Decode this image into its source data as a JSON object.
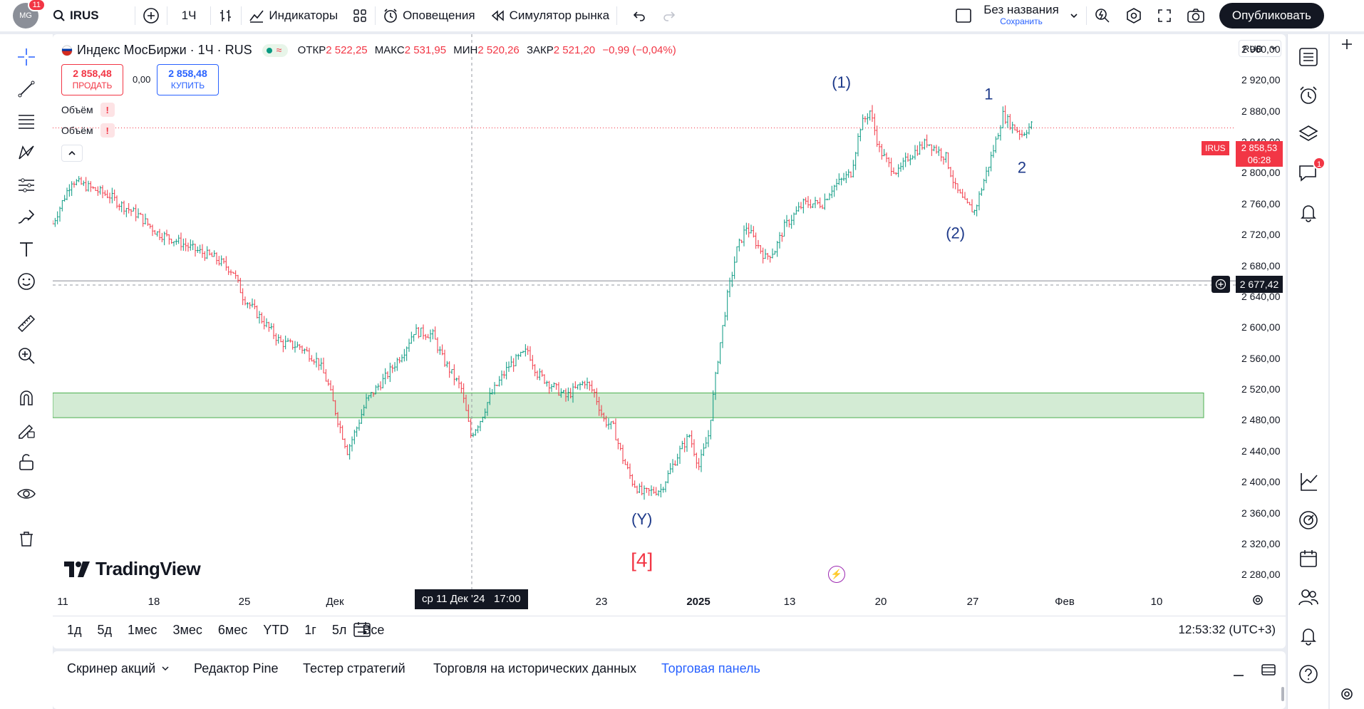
{
  "topbar": {
    "avatar_text": "MG",
    "avatar_badge": "11",
    "symbol": "IRUS",
    "interval": "1Ч",
    "indicators": "Индикаторы",
    "alerts": "Оповещения",
    "simulator": "Симулятор рынка",
    "layout_name": "Без названия",
    "layout_sub": "Сохранить",
    "publish": "Опубликовать"
  },
  "legend": {
    "title": "Индекс МосБиржи · 1Ч · RUS",
    "o_label": "ОТКР",
    "o": "2 522,25",
    "h_label": "МАКС",
    "h": "2 531,95",
    "l_label": "МИН",
    "l": "2 520,26",
    "c_label": "ЗАКР",
    "c": "2 521,20",
    "chg": "−0,99 (−0,04%)",
    "sell_price": "2 858,48",
    "sell_label": "ПРОДАТЬ",
    "spread": "0,00",
    "buy_price": "2 858,48",
    "buy_label": "КУПИТЬ",
    "vol1": "Объём",
    "vol2": "Объём"
  },
  "currency": "RUB",
  "price_badge": {
    "symbol": "IRUS",
    "price": "2 858,53",
    "countdown": "06:28"
  },
  "crosshair_price": "2 677,42",
  "crosshair_time": "ср 11 Дек '24   17:00",
  "colors": {
    "up": "#089981",
    "down": "#f23645",
    "zone": "#c8e6c9",
    "wave_label": "#1e3a8a"
  },
  "branding": "TradingView",
  "chart_data": {
    "type": "candlestick",
    "title": "Индекс МосБиржи · 1Ч · RUS",
    "yticks": [
      "2 960,00",
      "2 920,00",
      "2 880,00",
      "2 840,00",
      "2 800,00",
      "2 760,00",
      "2 720,00",
      "2 680,00",
      "2 640,00",
      "2 600,00",
      "2 560,00",
      "2 520,00",
      "2 480,00",
      "2 440,00",
      "2 400,00",
      "2 360,00",
      "2 320,00",
      "2 280,00"
    ],
    "ylim": [
      2260,
      2970
    ],
    "xticks": [
      "11",
      "18",
      "25",
      "Дек",
      "23",
      "2025",
      "13",
      "20",
      "27",
      "Фев",
      "10"
    ],
    "series_path": [
      [
        0,
        2734
      ],
      [
        4,
        2790
      ],
      [
        8,
        2780
      ],
      [
        12,
        2770
      ],
      [
        14,
        2760
      ],
      [
        18,
        2745
      ],
      [
        22,
        2722
      ],
      [
        26,
        2712
      ],
      [
        30,
        2700
      ],
      [
        34,
        2690
      ],
      [
        38,
        2672
      ],
      [
        40,
        2640
      ],
      [
        44,
        2610
      ],
      [
        48,
        2580
      ],
      [
        52,
        2575
      ],
      [
        56,
        2555
      ],
      [
        58,
        2525
      ],
      [
        60,
        2480
      ],
      [
        62,
        2440
      ],
      [
        64,
        2470
      ],
      [
        66,
        2505
      ],
      [
        70,
        2535
      ],
      [
        74,
        2570
      ],
      [
        76,
        2595
      ],
      [
        80,
        2590
      ],
      [
        82,
        2560
      ],
      [
        84,
        2540
      ],
      [
        86,
        2520
      ],
      [
        88,
        2460
      ],
      [
        90,
        2480
      ],
      [
        92,
        2510
      ],
      [
        96,
        2550
      ],
      [
        100,
        2570
      ],
      [
        102,
        2540
      ],
      [
        106,
        2520
      ],
      [
        108,
        2510
      ],
      [
        112,
        2530
      ],
      [
        114,
        2515
      ],
      [
        116,
        2480
      ],
      [
        118,
        2470
      ],
      [
        120,
        2430
      ],
      [
        122,
        2400
      ],
      [
        124,
        2385
      ],
      [
        128,
        2390
      ],
      [
        132,
        2440
      ],
      [
        134,
        2460
      ],
      [
        136,
        2420
      ],
      [
        138,
        2460
      ],
      [
        140,
        2560
      ],
      [
        142,
        2640
      ],
      [
        144,
        2700
      ],
      [
        146,
        2730
      ],
      [
        148,
        2710
      ],
      [
        150,
        2690
      ],
      [
        152,
        2700
      ],
      [
        154,
        2730
      ],
      [
        158,
        2760
      ],
      [
        162,
        2760
      ],
      [
        164,
        2780
      ],
      [
        168,
        2800
      ],
      [
        170,
        2860
      ],
      [
        172,
        2880
      ],
      [
        174,
        2830
      ],
      [
        176,
        2810
      ],
      [
        178,
        2800
      ],
      [
        180,
        2820
      ],
      [
        184,
        2840
      ],
      [
        188,
        2820
      ],
      [
        190,
        2780
      ],
      [
        192,
        2760
      ],
      [
        194,
        2750
      ],
      [
        196,
        2790
      ],
      [
        198,
        2830
      ],
      [
        200,
        2875
      ],
      [
        202,
        2860
      ],
      [
        204,
        2850
      ],
      [
        206,
        2862
      ]
    ],
    "series_x_max": 206,
    "x_range": [
      0,
      270
    ],
    "zone": [
      2483,
      2515
    ],
    "hline": 2660,
    "wave_labels": [
      {
        "text": "(1)",
        "x": 166,
        "y": 2910,
        "color": "#1e3a8a"
      },
      {
        "text": "1",
        "x": 197,
        "y": 2895,
        "color": "#1e3a8a"
      },
      {
        "text": "2",
        "x": 204,
        "y": 2800,
        "color": "#1e3a8a"
      },
      {
        "text": "(2)",
        "x": 190,
        "y": 2715,
        "color": "#1e3a8a"
      },
      {
        "text": "(Y)",
        "x": 124,
        "y": 2345,
        "color": "#1e3a8a"
      },
      {
        "text": "[4]",
        "x": 124,
        "y": 2290,
        "color": "#f23645"
      }
    ]
  },
  "periods": [
    "1д",
    "5д",
    "1мес",
    "3мес",
    "6мес",
    "YTD",
    "1г",
    "5л",
    "Все"
  ],
  "clock": "12:53:32 (UTC+3)",
  "bottom_tabs": [
    "Скринер акций",
    "Редактор Pine",
    "Тестер стратегий",
    "Торговля на исторических данных",
    "Торговая панель"
  ],
  "icons": [
    "search-icon",
    "plus-circle-icon",
    "bar-style-icon",
    "indicators-icon",
    "templates-icon",
    "alert-clock-icon",
    "replay-icon",
    "undo-icon",
    "redo-icon",
    "checkbox-icon",
    "chevron-down-icon",
    "zap-icon",
    "settings-icon",
    "fullscreen-icon",
    "camera-icon",
    "crosshair-icon",
    "trend-line-icon",
    "fib-icon",
    "pattern-icon",
    "projection-icon",
    "brush-icon",
    "text-icon",
    "emoji-icon",
    "ruler-icon",
    "zoom-icon",
    "magnet-icon",
    "lock-pencil-icon",
    "lock-icon",
    "eye-icon",
    "trash-icon",
    "watchlist-icon",
    "alarm-icon",
    "layers-icon",
    "chat-icon",
    "bell-icon",
    "gauge-icon",
    "calendar-icon",
    "people-icon",
    "help-icon",
    "gear-icon"
  ]
}
